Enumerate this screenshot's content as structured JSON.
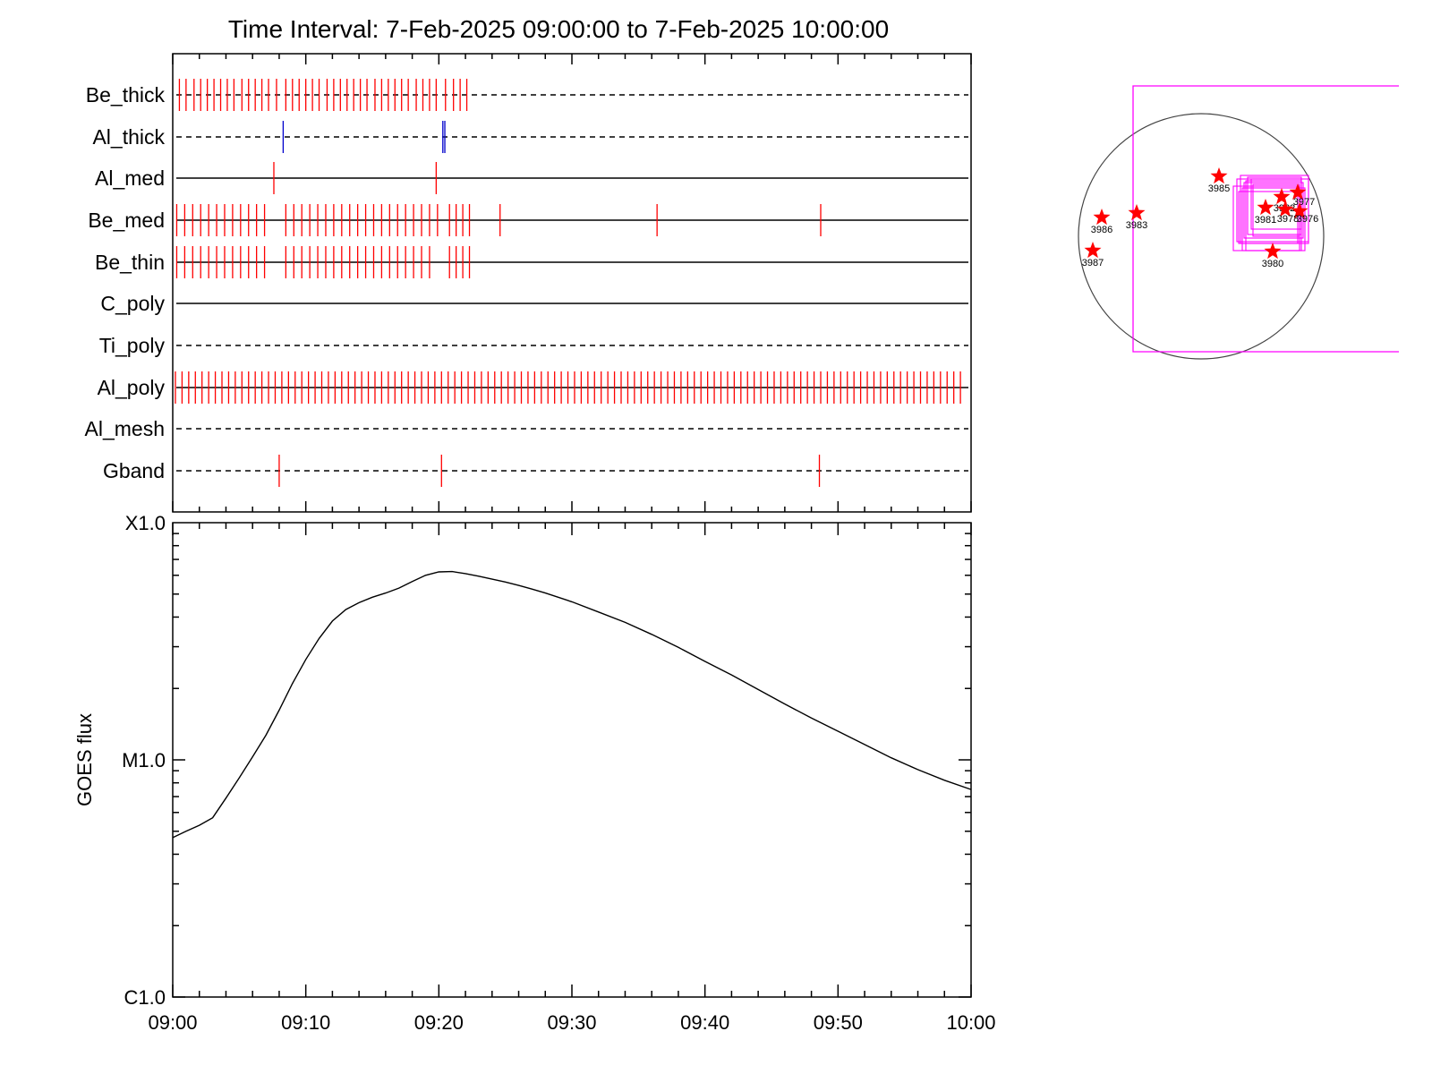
{
  "title": "Time Interval:  7-Feb-2025 09:00:00 to  7-Feb-2025 10:00:00",
  "colors": {
    "red": "#ff0000",
    "blue": "#0000cc",
    "magenta": "#ff00ff",
    "axis": "#000000",
    "curve": "#000000"
  },
  "chart_data": [
    {
      "type": "event-timeline",
      "x_unit": "minutes after 09:00",
      "xlim": [
        0,
        60
      ],
      "rows": [
        {
          "name": "Be_thick",
          "line": "dashed",
          "color": "#ff0000",
          "events": [
            0.5,
            1.0,
            1.6,
            2.1,
            2.6,
            3.1,
            3.6,
            4.1,
            4.6,
            5.2,
            5.7,
            6.2,
            6.7,
            7.2,
            7.8,
            8.5,
            9.0,
            9.5,
            10.0,
            10.5,
            11.0,
            11.6,
            12.1,
            12.6,
            13.1,
            13.6,
            14.1,
            14.6,
            15.2,
            15.7,
            16.2,
            16.7,
            17.2,
            17.7,
            18.3,
            18.8,
            19.3,
            19.8,
            20.5,
            21.1,
            21.6,
            22.1
          ]
        },
        {
          "name": "Al_thick",
          "line": "dashed",
          "color": "#0000cc",
          "events": [
            8.3,
            20.3,
            20.45
          ]
        },
        {
          "name": "Al_med",
          "line": "solid",
          "color": "#ff0000",
          "events": [
            7.6,
            19.8
          ]
        },
        {
          "name": "Be_med",
          "line": "solid",
          "color": "#ff0000",
          "events": [
            0.3,
            0.9,
            1.5,
            2.1,
            2.7,
            3.3,
            3.9,
            4.5,
            5.1,
            5.7,
            6.3,
            6.9,
            8.5,
            9.1,
            9.7,
            10.3,
            10.9,
            11.5,
            12.1,
            12.7,
            13.3,
            13.9,
            14.5,
            15.1,
            15.7,
            16.3,
            16.9,
            17.5,
            18.1,
            18.7,
            19.3,
            19.9,
            20.8,
            21.3,
            21.8,
            22.3,
            24.6,
            36.4,
            48.7
          ]
        },
        {
          "name": "Be_thin",
          "line": "solid",
          "color": "#ff0000",
          "events": [
            0.3,
            0.9,
            1.5,
            2.1,
            2.7,
            3.3,
            3.9,
            4.5,
            5.1,
            5.7,
            6.3,
            6.9,
            8.5,
            9.1,
            9.7,
            10.3,
            10.9,
            11.5,
            12.1,
            12.7,
            13.3,
            13.9,
            14.5,
            15.1,
            15.7,
            16.3,
            16.9,
            17.5,
            18.1,
            18.7,
            19.3,
            20.8,
            21.3,
            21.8,
            22.3
          ]
        },
        {
          "name": "C_poly",
          "line": "solid",
          "color": "#ff0000",
          "events": []
        },
        {
          "name": "Ti_poly",
          "line": "dashed",
          "color": "#ff0000",
          "events": []
        },
        {
          "name": "Al_poly",
          "line": "solid",
          "color": "#ff0000",
          "events_start": 0.2,
          "events_end": 59.4,
          "events_step": 0.5
        },
        {
          "name": "Al_mesh",
          "line": "dashed",
          "color": "#ff0000",
          "events": []
        },
        {
          "name": "Gband",
          "line": "dashed",
          "color": "#ff0000",
          "events": [
            8.0,
            20.2,
            48.6
          ]
        }
      ]
    },
    {
      "type": "line",
      "ylabel": "GOES flux",
      "yscale": "log",
      "ylim": [
        1e-06,
        0.0001
      ],
      "ytick_values": [
        1e-06,
        1e-05,
        0.0001
      ],
      "ytick_labels": [
        "C1.0",
        "M1.0",
        "X1.0"
      ],
      "xlim": [
        0,
        60
      ],
      "xtick_values": [
        0,
        10,
        20,
        30,
        40,
        50,
        60
      ],
      "xtick_labels": [
        "09:00",
        "09:10",
        "09:20",
        "09:30",
        "09:40",
        "09:50",
        "10:00"
      ],
      "series": [
        {
          "x": [
            0,
            1,
            2,
            3,
            4,
            5,
            6,
            7,
            8,
            9,
            10,
            11,
            12,
            13,
            14,
            15,
            16,
            17,
            18,
            19,
            20,
            21,
            22,
            23,
            24,
            25,
            26,
            27,
            28,
            30,
            32,
            34,
            36,
            38,
            40,
            42,
            44,
            46,
            48,
            50,
            52,
            54,
            56,
            58,
            60
          ],
          "y": [
            4.7e-06,
            5e-06,
            5.3e-06,
            5.7e-06,
            6.9e-06,
            8.4e-06,
            1.03e-05,
            1.27e-05,
            1.62e-05,
            2.1e-05,
            2.65e-05,
            3.25e-05,
            3.85e-05,
            4.3e-05,
            4.6e-05,
            4.85e-05,
            5.05e-05,
            5.3e-05,
            5.65e-05,
            6e-05,
            6.2e-05,
            6.22e-05,
            6.1e-05,
            5.95e-05,
            5.78e-05,
            5.62e-05,
            5.44e-05,
            5.25e-05,
            5.05e-05,
            4.64e-05,
            4.2e-05,
            3.8e-05,
            3.38e-05,
            2.98e-05,
            2.6e-05,
            2.28e-05,
            1.98e-05,
            1.72e-05,
            1.5e-05,
            1.32e-05,
            1.16e-05,
            1.02e-05,
            9.1e-06,
            8.2e-06,
            7.5e-06
          ]
        }
      ]
    },
    {
      "type": "scatter",
      "description_type": "solar-disk-map",
      "points": [
        {
          "label": "3985"
        },
        {
          "label": "3986"
        },
        {
          "label": "3983"
        },
        {
          "label": "3987"
        },
        {
          "label": "3981"
        },
        {
          "label": "3980"
        },
        {
          "label": "3982"
        },
        {
          "label": "3977"
        },
        {
          "label": "3976"
        },
        {
          "label": "3978"
        }
      ]
    }
  ]
}
